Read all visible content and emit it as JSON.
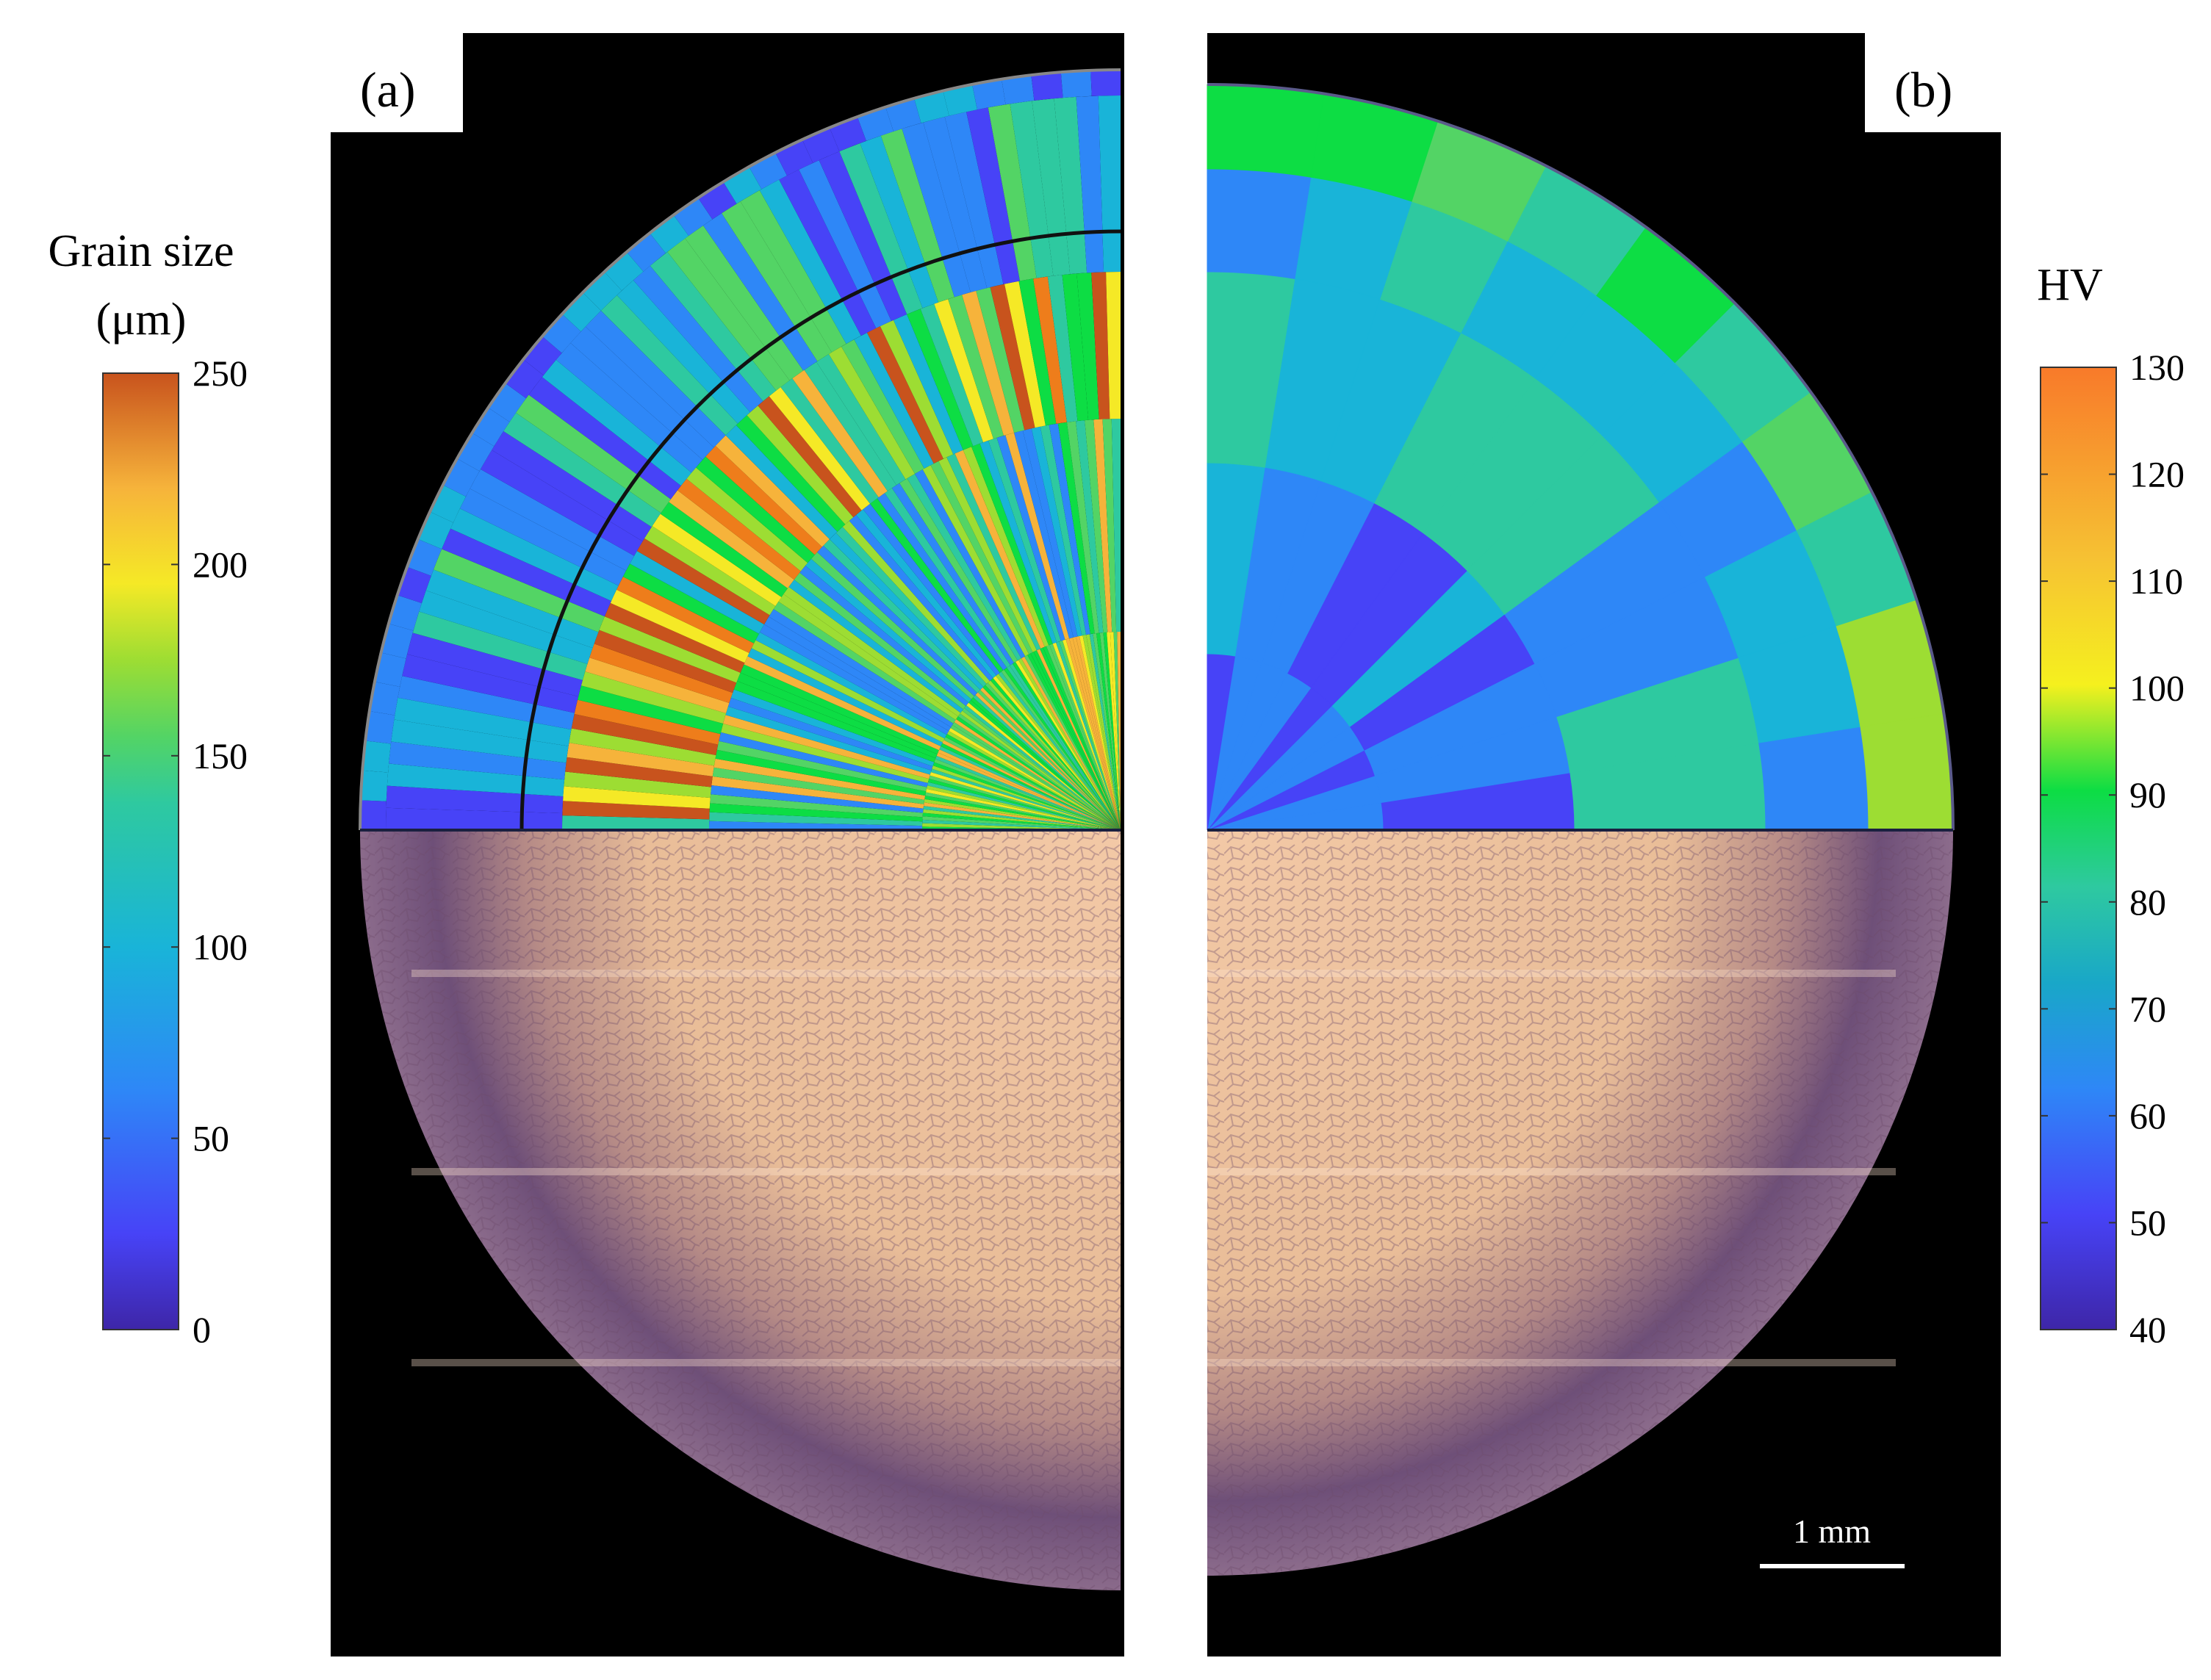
{
  "panels": {
    "a": {
      "label": "(a)"
    },
    "b": {
      "label": "(b)"
    }
  },
  "colorbar_grain": {
    "title_line1": "Grain size",
    "title_line2": "(μm)",
    "ticks": [
      "0",
      "50",
      "100",
      "150",
      "200",
      "250"
    ],
    "range": [
      0,
      250
    ]
  },
  "colorbar_hv": {
    "title": "HV",
    "ticks": [
      "40",
      "50",
      "60",
      "70",
      "80",
      "90",
      "100",
      "110",
      "120",
      "130"
    ],
    "range": [
      40,
      130
    ]
  },
  "scale_bar": {
    "label": "1 mm"
  },
  "colors": {
    "colormap": [
      "#3e26a8",
      "#4743f7",
      "#2e87f7",
      "#19b4d8",
      "#2ec9a0",
      "#53d465",
      "#0ddd44",
      "#9ddd33",
      "#f5e926",
      "#f6b33b",
      "#ee7d1b",
      "#c8531d"
    ],
    "micrograph_light": "#e8b89a",
    "micrograph_dark": "#5a3f6e",
    "background": "#000000"
  }
}
